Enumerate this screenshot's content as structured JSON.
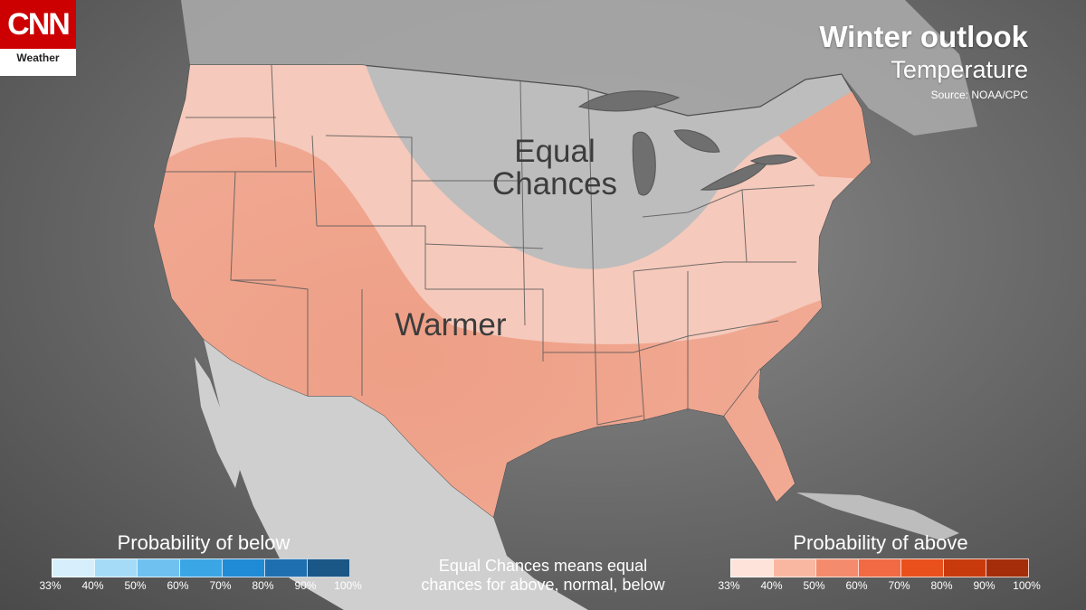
{
  "logo": {
    "brand": "CNN",
    "section": "Weather"
  },
  "header": {
    "title": "Winter outlook",
    "subtitle": "Temperature",
    "source": "Source: NOAA/CPC"
  },
  "map": {
    "labels": {
      "equal": "Equal Chances",
      "warmer": "Warmer"
    },
    "colors": {
      "land": "#bdbdbd",
      "mexico": "#cfcfcf",
      "water": "#6e6e6e",
      "warmer_low": "#f6cbbf",
      "warmer_high": "#ee9f86",
      "border": "#555555"
    }
  },
  "legend": {
    "below": {
      "title": "Probability of below",
      "ticks": [
        "33%",
        "40%",
        "50%",
        "60%",
        "70%",
        "80%",
        "90%",
        "100%"
      ],
      "colors": [
        "#d7eefc",
        "#a6dbf7",
        "#6fc2f0",
        "#3ba6e6",
        "#1f8bd6",
        "#1e6fb0",
        "#1a5686"
      ]
    },
    "above": {
      "title": "Probability of above",
      "ticks": [
        "33%",
        "40%",
        "50%",
        "60%",
        "70%",
        "80%",
        "90%",
        "100%"
      ],
      "colors": [
        "#fde3da",
        "#f9b7a2",
        "#f58b6d",
        "#f26a43",
        "#e9501c",
        "#c83a0c",
        "#a52d09"
      ]
    },
    "note_line1": "Equal Chances means equal",
    "note_line2": "chances for above, normal, below"
  }
}
